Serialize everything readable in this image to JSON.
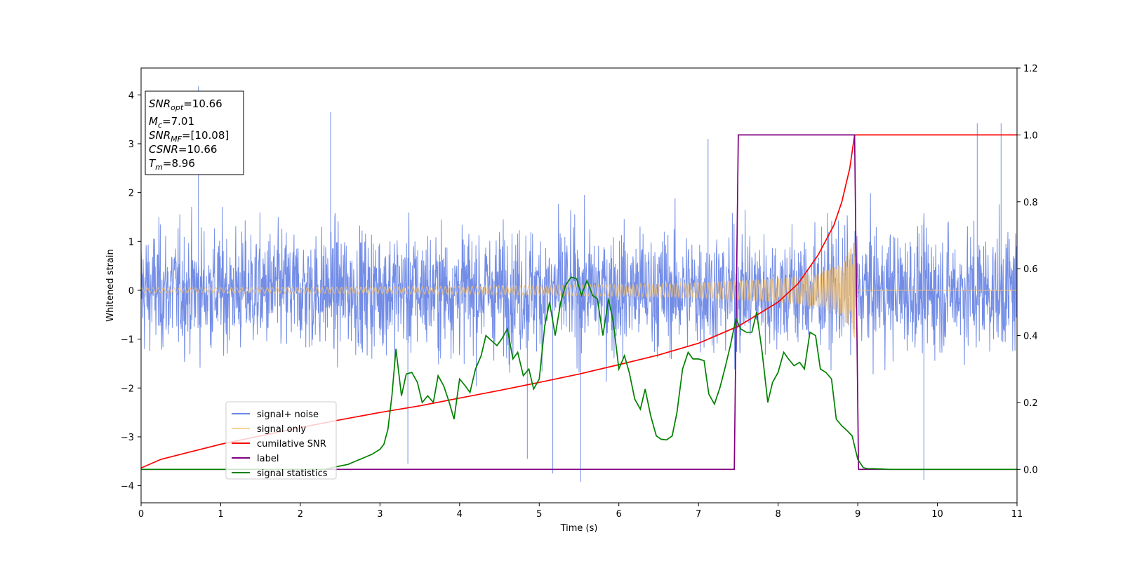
{
  "chart_data": {
    "type": "line",
    "xlabel": "Time (s)",
    "ylabel": "Whitened strain",
    "xlim": [
      0,
      11
    ],
    "ylim_left": [
      -4.35,
      4.55
    ],
    "ylim_right": [
      -0.1,
      1.2
    ],
    "x_ticks": [
      0,
      1,
      2,
      3,
      4,
      5,
      6,
      7,
      8,
      9,
      10,
      11
    ],
    "x_tick_labels": [
      "0",
      "1",
      "2",
      "3",
      "4",
      "5",
      "6",
      "7",
      "8",
      "9",
      "10",
      "11"
    ],
    "y_left_ticks": [
      -4,
      -3,
      -2,
      -1,
      0,
      1,
      2,
      3,
      4
    ],
    "y_left_tick_labels": [
      "−4",
      "−3",
      "−2",
      "−1",
      "0",
      "1",
      "2",
      "3",
      "4"
    ],
    "y_right_ticks": [
      0.0,
      0.2,
      0.4,
      0.6,
      0.8,
      1.0,
      1.2
    ],
    "y_right_tick_labels": [
      "0.0",
      "0.2",
      "0.4",
      "0.6",
      "0.8",
      "1.0",
      "1.2"
    ],
    "grid": false,
    "legend_position": "lower-left",
    "annotation": {
      "lines": [
        {
          "name": "SNR",
          "sub": "opt",
          "value": "=10.66"
        },
        {
          "name": "M",
          "sub": "c",
          "value": "=7.01"
        },
        {
          "name": "SNR",
          "sub": "MF",
          "value": "=[10.08]"
        },
        {
          "name": "CSNR",
          "sub": "",
          "value": "=10.66"
        },
        {
          "name": "T",
          "sub": "m",
          "value": "=8.96"
        }
      ]
    },
    "series": [
      {
        "name": "signal+ noise",
        "axis": "left",
        "color": "#6b87e6",
        "style": "dense noise, amplitude ~±2.5 with spikes to ~±3.9",
        "spikes": [
          [
            0.72,
            4.18
          ],
          [
            2.38,
            3.65
          ],
          [
            5.52,
            -3.92
          ],
          [
            9.83,
            -3.88
          ],
          [
            10.5,
            3.42
          ],
          [
            10.8,
            3.42
          ],
          [
            5.17,
            -3.75
          ],
          [
            3.35,
            -3.55
          ],
          [
            7.12,
            3.1
          ],
          [
            4.85,
            -3.45
          ]
        ]
      },
      {
        "name": "signal only",
        "axis": "left",
        "color": "#f5c16c",
        "style": "chirp, amplitude grows toward merger at t=8.96, then ~0",
        "envelope": [
          [
            0,
            0.05
          ],
          [
            2,
            0.06
          ],
          [
            4,
            0.08
          ],
          [
            6,
            0.12
          ],
          [
            7,
            0.16
          ],
          [
            8,
            0.25
          ],
          [
            8.5,
            0.35
          ],
          [
            8.8,
            0.55
          ],
          [
            8.96,
            1.0
          ],
          [
            9.0,
            0.0
          ],
          [
            11,
            0.0
          ]
        ]
      },
      {
        "name": "cumilative SNR",
        "axis": "right",
        "color": "#ff0000",
        "x": [
          0,
          0.25,
          0.5,
          1,
          1.5,
          2,
          2.5,
          3,
          3.5,
          4,
          4.5,
          5,
          5.5,
          6,
          6.5,
          7,
          7.5,
          8,
          8.25,
          8.5,
          8.7,
          8.8,
          8.9,
          8.96,
          11
        ],
        "y": [
          0.004,
          0.03,
          0.045,
          0.075,
          0.1,
          0.125,
          0.148,
          0.17,
          0.19,
          0.213,
          0.236,
          0.26,
          0.285,
          0.313,
          0.342,
          0.377,
          0.428,
          0.5,
          0.555,
          0.64,
          0.73,
          0.8,
          0.9,
          1.0,
          1.0
        ]
      },
      {
        "name": "label",
        "axis": "right",
        "color": "#800080",
        "x": [
          0,
          7.45,
          7.5,
          8.96,
          9.01,
          11
        ],
        "y": [
          0,
          0,
          1,
          1,
          0,
          0
        ]
      },
      {
        "name": "signal statistics",
        "axis": "right",
        "color": "#008000",
        "x": [
          0,
          2.3,
          2.5,
          2.6,
          2.7,
          2.8,
          2.9,
          3.0,
          3.05,
          3.1,
          3.15,
          3.2,
          3.27,
          3.33,
          3.4,
          3.47,
          3.53,
          3.6,
          3.67,
          3.73,
          3.8,
          3.87,
          3.93,
          4.0,
          4.07,
          4.13,
          4.2,
          4.27,
          4.33,
          4.4,
          4.47,
          4.53,
          4.6,
          4.67,
          4.73,
          4.8,
          4.87,
          4.93,
          5.0,
          5.07,
          5.13,
          5.2,
          5.27,
          5.33,
          5.4,
          5.47,
          5.53,
          5.6,
          5.67,
          5.73,
          5.8,
          5.87,
          5.93,
          6.0,
          6.07,
          6.13,
          6.2,
          6.27,
          6.33,
          6.4,
          6.47,
          6.53,
          6.6,
          6.67,
          6.73,
          6.8,
          6.87,
          6.93,
          7.0,
          7.07,
          7.13,
          7.2,
          7.27,
          7.33,
          7.4,
          7.47,
          7.53,
          7.6,
          7.67,
          7.73,
          7.8,
          7.87,
          7.93,
          8.0,
          8.07,
          8.13,
          8.2,
          8.27,
          8.33,
          8.4,
          8.47,
          8.53,
          8.6,
          8.67,
          8.73,
          8.8,
          8.87,
          8.93,
          9.0,
          9.07,
          9.13,
          9.2,
          9.4,
          9.6,
          10.0,
          11.0
        ],
        "y": [
          0.0,
          0.0,
          0.01,
          0.015,
          0.025,
          0.035,
          0.045,
          0.06,
          0.075,
          0.12,
          0.22,
          0.36,
          0.22,
          0.285,
          0.29,
          0.26,
          0.2,
          0.22,
          0.2,
          0.28,
          0.25,
          0.2,
          0.15,
          0.27,
          0.25,
          0.23,
          0.3,
          0.34,
          0.4,
          0.385,
          0.37,
          0.39,
          0.42,
          0.33,
          0.35,
          0.28,
          0.3,
          0.24,
          0.27,
          0.43,
          0.5,
          0.4,
          0.5,
          0.55,
          0.575,
          0.57,
          0.52,
          0.565,
          0.52,
          0.51,
          0.4,
          0.51,
          0.44,
          0.3,
          0.34,
          0.29,
          0.21,
          0.18,
          0.24,
          0.16,
          0.1,
          0.09,
          0.088,
          0.1,
          0.17,
          0.3,
          0.35,
          0.33,
          0.33,
          0.325,
          0.225,
          0.195,
          0.245,
          0.3,
          0.37,
          0.45,
          0.42,
          0.41,
          0.41,
          0.47,
          0.35,
          0.2,
          0.26,
          0.29,
          0.35,
          0.33,
          0.31,
          0.32,
          0.3,
          0.41,
          0.4,
          0.3,
          0.29,
          0.27,
          0.15,
          0.13,
          0.115,
          0.1,
          0.03,
          0.005,
          0.002,
          0.002,
          0.0,
          0.0,
          0.0,
          0.0
        ]
      }
    ]
  }
}
